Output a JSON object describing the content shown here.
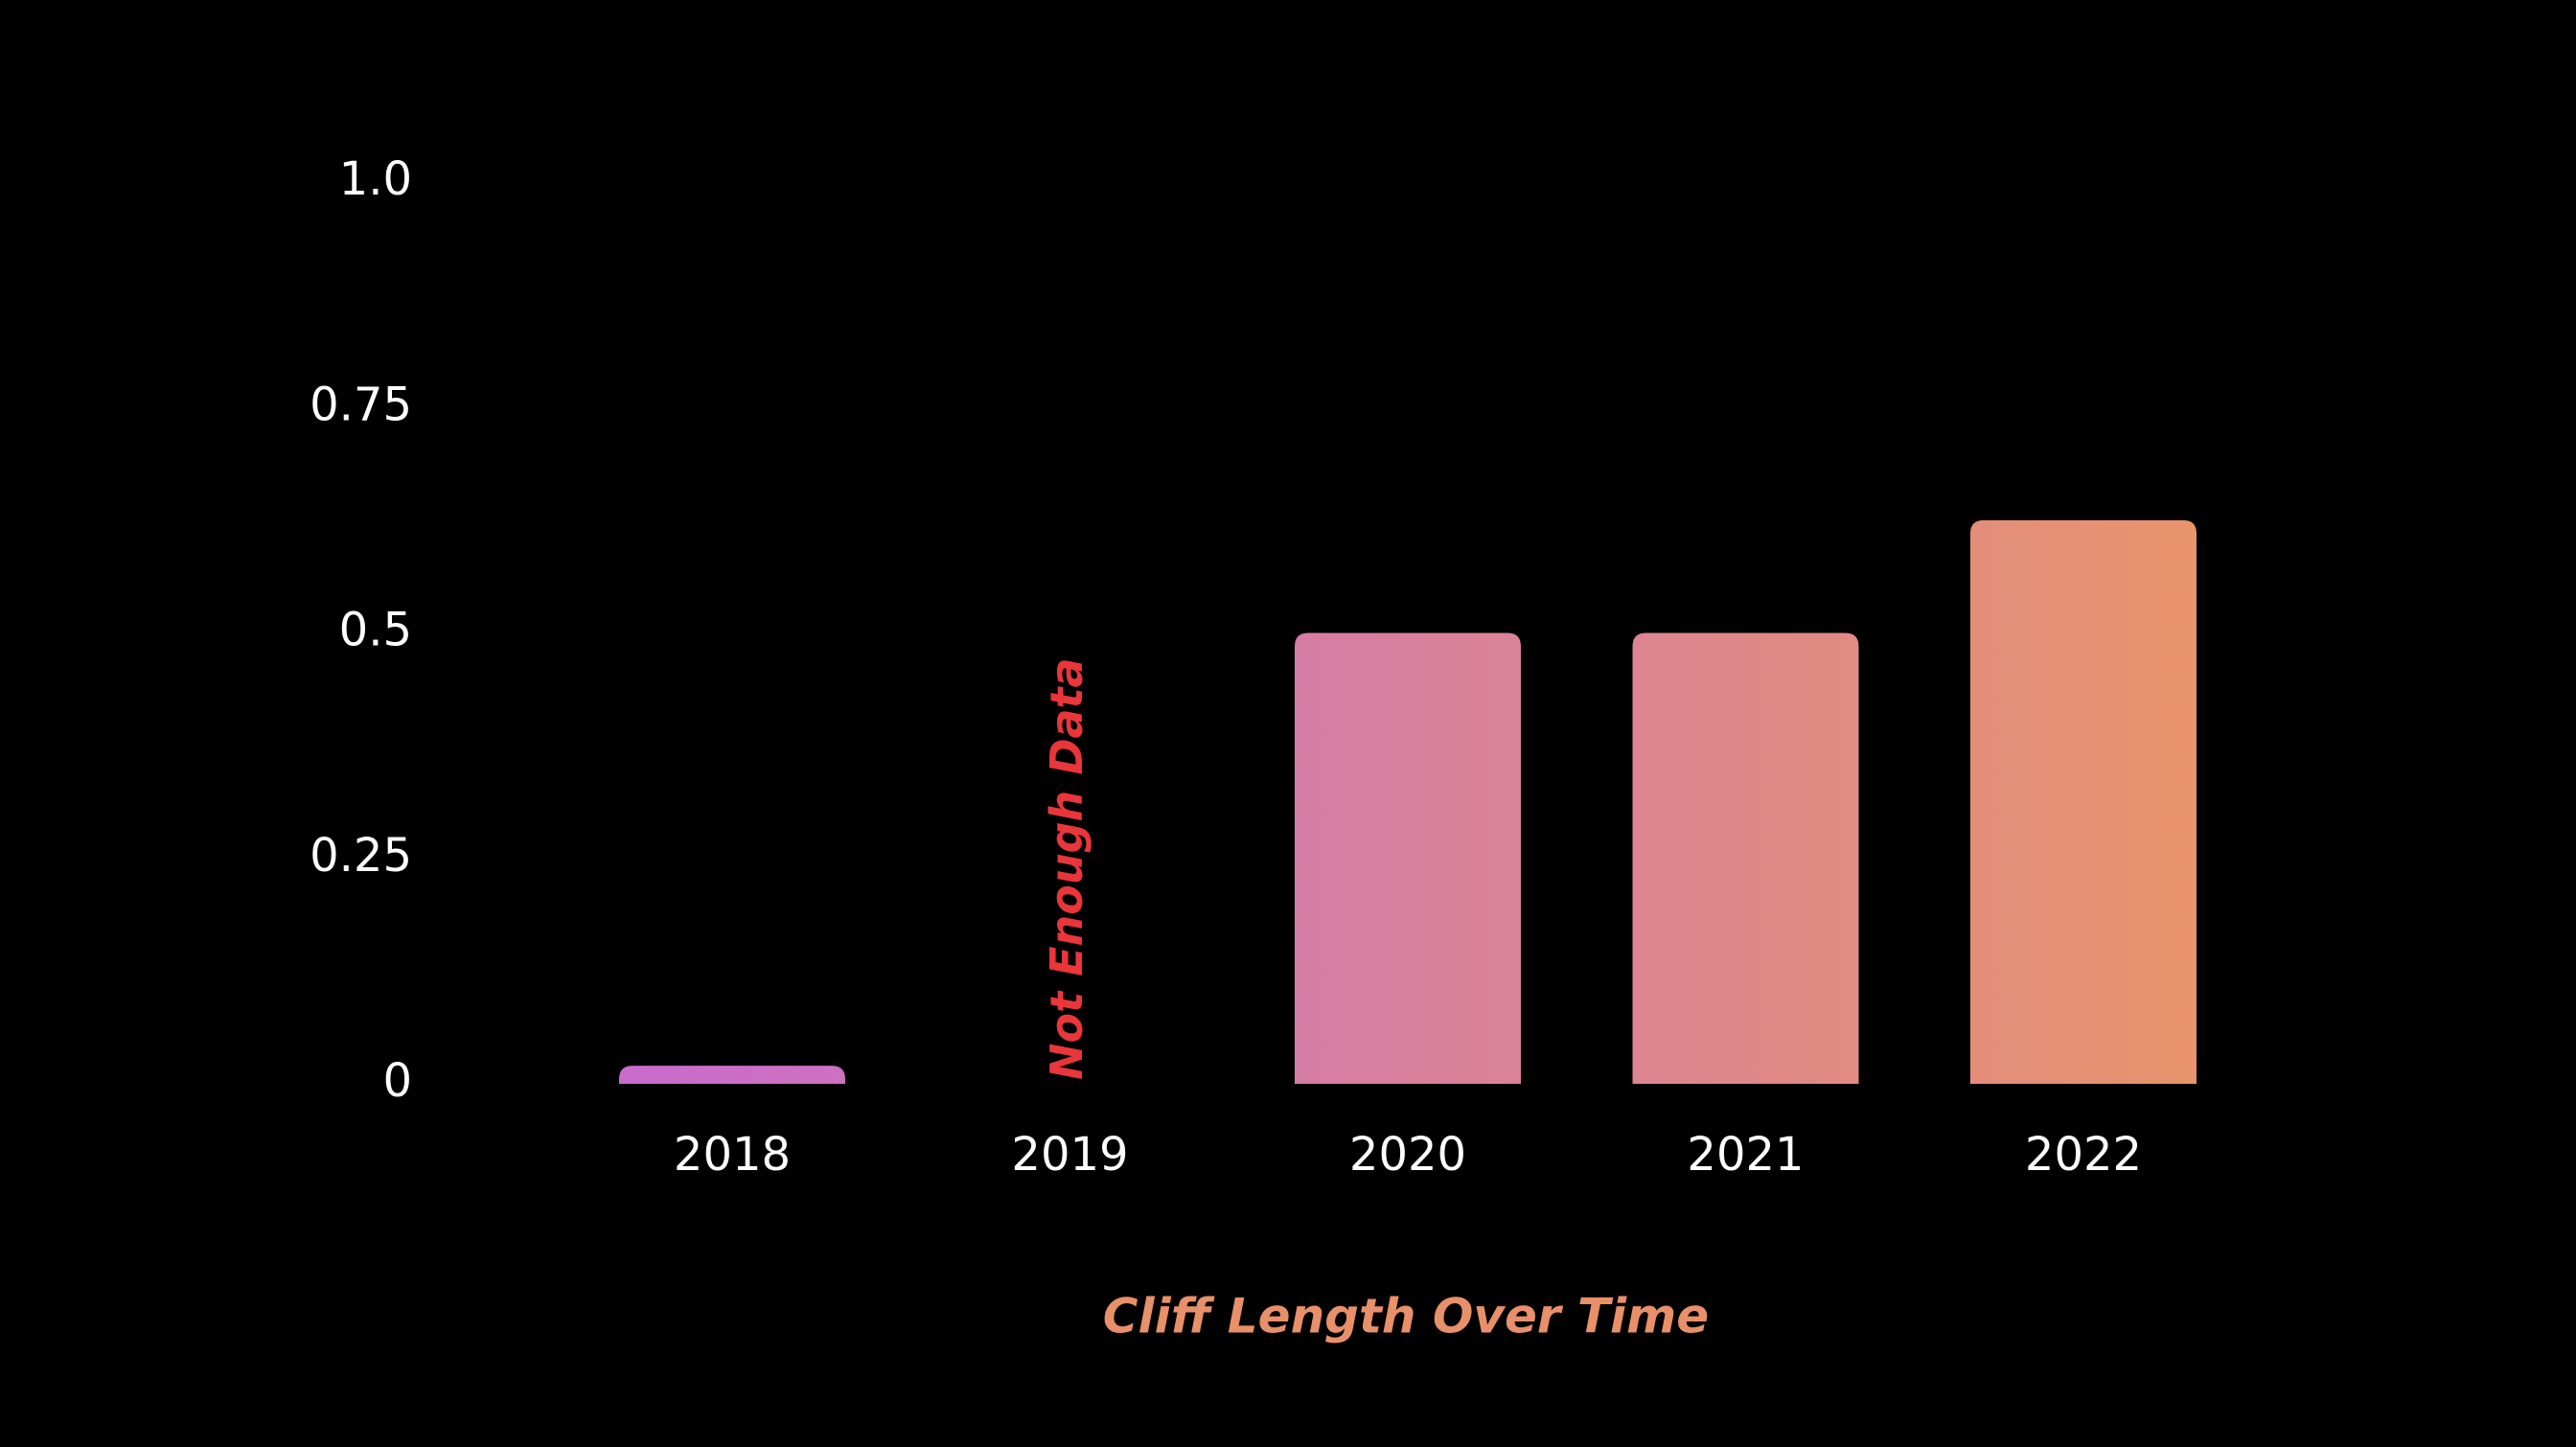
{
  "chart_data": {
    "type": "bar",
    "title": "Cliff Length Over Time",
    "categories": [
      "2018",
      "2019",
      "2020",
      "2021",
      "2022"
    ],
    "values": [
      0.02,
      null,
      0.5,
      0.5,
      0.625
    ],
    "annotation": "Not Enough Data",
    "colors": [
      "#c96bcf",
      "#e8946c"
    ],
    "ylim": [
      0,
      1
    ],
    "yticks": [
      0,
      0.25,
      0.5,
      0.75,
      {
        "value": 1,
        "label": "1.0"
      }
    ],
    "grid": false
  }
}
